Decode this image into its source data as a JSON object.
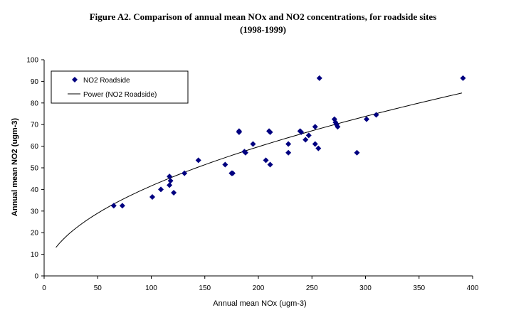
{
  "chart_data": {
    "type": "scatter",
    "title_lines": [
      "Figure A2. Comparison of annual mean NOx and NO2 concentrations, for roadside sites",
      "(1998-1999)"
    ],
    "xlabel": "Annual mean NOx (ugm-3)",
    "ylabel": "Annual mean NO2 (ugm-3)",
    "xlim": [
      0,
      400
    ],
    "ylim": [
      0,
      100
    ],
    "xticks": [
      0,
      50,
      100,
      150,
      200,
      250,
      300,
      350,
      400
    ],
    "yticks": [
      0,
      10,
      20,
      30,
      40,
      50,
      60,
      70,
      80,
      90,
      100
    ],
    "grid": false,
    "legend_position": "top-left",
    "series": [
      {
        "name": "NO2 Roadside",
        "kind": "points",
        "marker": "diamond",
        "color": "#000080",
        "x": [
          65,
          73,
          101,
          109,
          117,
          117,
          118,
          121,
          131,
          144,
          169,
          175,
          176,
          182,
          182,
          187,
          188,
          195,
          207,
          210,
          211,
          211,
          228,
          228,
          239,
          240,
          244,
          247,
          253,
          253,
          256,
          257,
          271,
          272,
          273,
          274,
          292,
          301,
          310,
          391
        ],
        "y": [
          32.5,
          32.5,
          36.5,
          40,
          42,
          46,
          44,
          38.5,
          47.5,
          53.5,
          51.5,
          47.5,
          47.5,
          67,
          66.5,
          57.5,
          57,
          61,
          53.5,
          67,
          66.5,
          51.5,
          61,
          57,
          67,
          66.5,
          63,
          65,
          69,
          61,
          59,
          91.5,
          72.5,
          71,
          70,
          69,
          57,
          72.5,
          74.5,
          91.5
        ]
      },
      {
        "name": "Power (NO2 Roadside)",
        "kind": "trendline",
        "color": "#000000",
        "coefficient": 3.78,
        "exponent": 0.521,
        "x_range": [
          11,
          390
        ]
      }
    ]
  }
}
